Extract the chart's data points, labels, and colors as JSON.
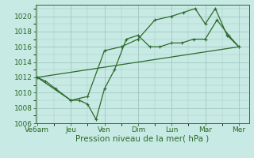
{
  "background_color": "#c8eae4",
  "grid_color": "#a0c8c0",
  "line_color": "#2d6a2d",
  "xlabel": "Pression niveau de la mer( hPa )",
  "xlabel_fontsize": 7.5,
  "tick_fontsize": 6.5,
  "ylim": [
    1006,
    1021.5
  ],
  "yticks": [
    1006,
    1008,
    1010,
    1012,
    1014,
    1016,
    1018,
    1020
  ],
  "x_labels": [
    "Ve6am",
    "Jeu",
    "Ven",
    "Dim",
    "Lun",
    "Mar",
    "Mer"
  ],
  "x_positions": [
    0,
    1,
    2,
    3,
    4,
    5,
    6
  ],
  "xlim": [
    -0.05,
    6.3
  ],
  "series1_x": [
    0,
    0.25,
    0.55,
    1.0,
    1.25,
    1.5,
    1.75,
    2.0,
    2.3,
    2.65,
    3.0,
    3.35,
    3.65,
    4.0,
    4.3,
    4.65,
    5.0,
    5.35,
    5.7,
    6.0
  ],
  "series1_y": [
    1012,
    1011.5,
    1010.5,
    1009,
    1009,
    1008.5,
    1006.5,
    1010.5,
    1013,
    1017,
    1017.5,
    1016,
    1016,
    1016.5,
    1016.5,
    1017,
    1017,
    1019.5,
    1017.5,
    1016
  ],
  "series2_x": [
    0,
    1.0,
    1.5,
    2.0,
    2.5,
    3.0,
    3.5,
    4.0,
    4.35,
    4.7,
    5.0,
    5.3,
    5.65,
    6.0
  ],
  "series2_y": [
    1012,
    1009,
    1009.5,
    1015.5,
    1016,
    1017,
    1019.5,
    1020,
    1020.5,
    1021,
    1019,
    1021,
    1017.5,
    1016
  ],
  "series3_x": [
    0,
    6.0
  ],
  "series3_y": [
    1012,
    1016
  ]
}
